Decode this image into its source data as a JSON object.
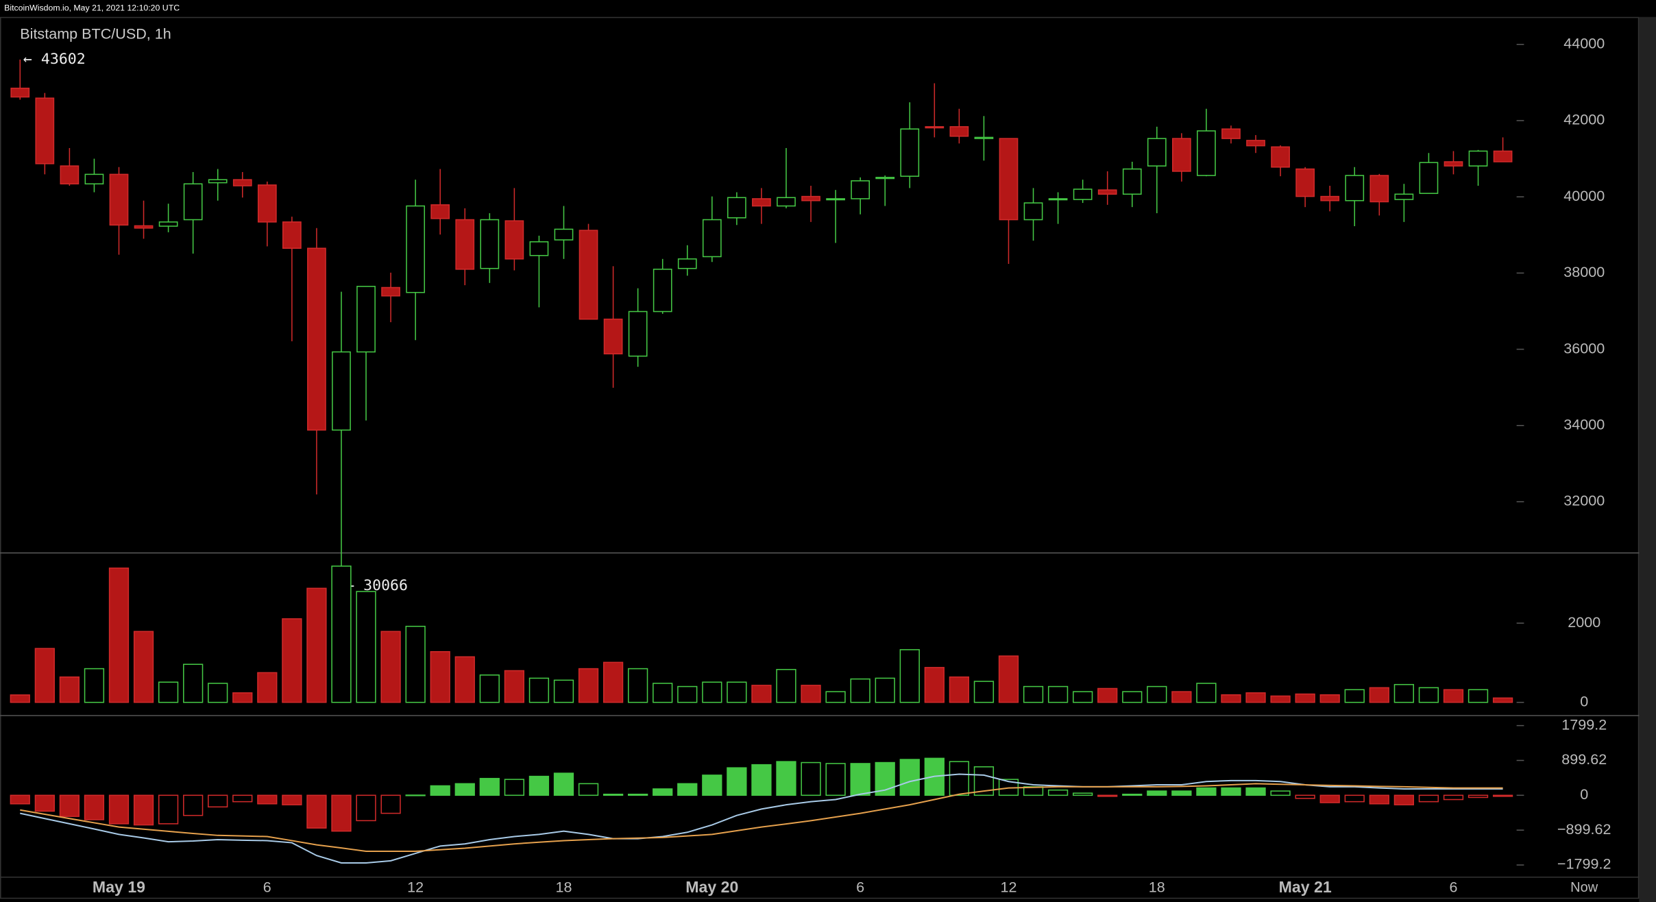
{
  "header": {
    "title": "BitcoinWisdom.io, May 21, 2021 12:10:20 UTC"
  },
  "chart_data": [
    {
      "type": "candlestick",
      "title": "Bitstamp BTC/USD, 1h",
      "annotations": [
        "← 43602",
        "← 30066"
      ],
      "categories": [
        null,
        null,
        null,
        null,
        "May 19",
        null,
        null,
        null,
        null,
        null,
        "6",
        null,
        null,
        null,
        null,
        null,
        "12",
        null,
        null,
        null,
        null,
        null,
        "18",
        null,
        null,
        null,
        null,
        null,
        "May 20",
        null,
        null,
        null,
        null,
        null,
        "6",
        null,
        null,
        null,
        null,
        null,
        "12",
        null,
        null,
        null,
        null,
        null,
        "18",
        null,
        null,
        null,
        null,
        null,
        "May 21",
        null,
        null,
        null,
        null,
        null,
        "6",
        null,
        null
      ],
      "now_label": "Now",
      "open": [
        42850,
        42590,
        40810,
        40340,
        40590,
        39240,
        39230,
        39400,
        40370,
        40450,
        40310,
        39340,
        38650,
        33880,
        35930,
        37620,
        37490,
        39790,
        39400,
        38120,
        39370,
        38460,
        38870,
        39120,
        36790,
        35820,
        36990,
        38120,
        38430,
        39450,
        39950,
        39760,
        40010,
        39930,
        39950,
        40480,
        40540,
        41840,
        41840,
        41530,
        41530,
        39400,
        39930,
        39930,
        40180,
        40070,
        40810,
        41530,
        40560,
        41780,
        41480,
        41310,
        40730,
        40010,
        39900,
        40560,
        39930,
        40090,
        40920,
        40810,
        41200
      ],
      "high": [
        43602,
        42725,
        41280,
        41000,
        40780,
        39900,
        39820,
        40650,
        40730,
        40650,
        40400,
        39480,
        39180,
        37510,
        37650,
        38010,
        40450,
        40730,
        39700,
        39570,
        40230,
        38980,
        39760,
        39290,
        38180,
        37600,
        38370,
        38730,
        40010,
        40120,
        40230,
        41280,
        40290,
        40180,
        40510,
        40560,
        42480,
        42980,
        42310,
        42120,
        41530,
        40230,
        40120,
        40450,
        40670,
        40920,
        41840,
        41670,
        42310,
        41870,
        41620,
        41350,
        40780,
        40290,
        40780,
        40600,
        40340,
        41150,
        41200,
        41230,
        41560
      ],
      "low": [
        42550,
        40590,
        40290,
        40120,
        38480,
        38900,
        39070,
        38510,
        39900,
        39980,
        38700,
        36210,
        32190,
        30066,
        34130,
        36710,
        36240,
        39010,
        37680,
        37740,
        38070,
        37100,
        38370,
        36790,
        34990,
        35540,
        36930,
        37930,
        38290,
        39260,
        39290,
        39700,
        39340,
        38790,
        39540,
        39760,
        40230,
        41560,
        41400,
        40950,
        38240,
        38850,
        39290,
        39840,
        39790,
        39730,
        39570,
        40400,
        40540,
        41400,
        41150,
        40540,
        39730,
        39620,
        39230,
        39510,
        39340,
        40090,
        40590,
        40290,
        40920
      ],
      "close": [
        42620,
        40870,
        40340,
        40590,
        39260,
        39180,
        39340,
        40340,
        40450,
        40290,
        39340,
        38650,
        33880,
        35930,
        37650,
        37400,
        39760,
        39430,
        38100,
        39400,
        38370,
        38820,
        39150,
        36790,
        35880,
        36990,
        38100,
        38370,
        39400,
        39980,
        39760,
        39980,
        39900,
        39950,
        40420,
        40510,
        41780,
        41810,
        41590,
        41560,
        39400,
        39840,
        39950,
        40200,
        40070,
        40730,
        41530,
        40670,
        41730,
        41530,
        41340,
        40780,
        40010,
        39900,
        40560,
        39870,
        40070,
        40900,
        40810,
        41200,
        40920
      ],
      "up_color": "#45c845",
      "down_color": "#b51717",
      "ylim": [
        30670,
        44720
      ],
      "yticks": [
        32000,
        34000,
        36000,
        38000,
        40000,
        42000,
        44000
      ]
    },
    {
      "type": "bar",
      "values": [
        187,
        1360,
        640,
        850,
        3390,
        1790,
        510,
        960,
        480,
        240,
        750,
        2110,
        2880,
        3440,
        2800,
        1790,
        1920,
        1280,
        1150,
        690,
        800,
        610,
        560,
        850,
        1010,
        850,
        480,
        400,
        510,
        510,
        430,
        830,
        430,
        270,
        590,
        610,
        1330,
        880,
        640,
        530,
        1170,
        400,
        400,
        270,
        350,
        270,
        400,
        270,
        480,
        190,
        240,
        160,
        210,
        190,
        320,
        370,
        450,
        370,
        320,
        320,
        110
      ],
      "ylim": [
        -320,
        3787
      ],
      "yticks": [
        0,
        2000
      ]
    },
    {
      "type": "macd",
      "histogram": [
        -220,
        -410,
        -545,
        -630,
        -735,
        -765,
        -735,
        -520,
        -300,
        -165,
        -220,
        -245,
        -845,
        -925,
        -655,
        -465,
        5,
        245,
        300,
        435,
        410,
        490,
        570,
        300,
        27,
        27,
        165,
        300,
        520,
        710,
        790,
        870,
        845,
        820,
        820,
        845,
        925,
        955,
        870,
        735,
        410,
        220,
        135,
        55,
        -27,
        27,
        110,
        110,
        190,
        190,
        190,
        110,
        -80,
        -190,
        -165,
        -220,
        -245,
        -165,
        -110,
        -55,
        -27
      ],
      "series": [
        {
          "color": "#a9cbe8",
          "values": [
            -465,
            -600,
            -735,
            -870,
            -1010,
            -1100,
            -1200,
            -1180,
            -1145,
            -1160,
            -1170,
            -1225,
            -1555,
            -1745,
            -1745,
            -1690,
            -1500,
            -1310,
            -1255,
            -1145,
            -1065,
            -1010,
            -925,
            -1010,
            -1120,
            -1120,
            -1065,
            -955,
            -765,
            -520,
            -355,
            -245,
            -165,
            -110,
            27,
            135,
            355,
            490,
            545,
            520,
            355,
            270,
            245,
            220,
            220,
            245,
            270,
            270,
            355,
            380,
            380,
            355,
            270,
            220,
            220,
            190,
            165,
            165,
            165,
            165,
            165
          ]
        },
        {
          "color": "#e6a14d",
          "values": [
            -380,
            -490,
            -600,
            -710,
            -820,
            -875,
            -930,
            -985,
            -1035,
            -1050,
            -1065,
            -1170,
            -1280,
            -1360,
            -1445,
            -1445,
            -1445,
            -1405,
            -1365,
            -1310,
            -1255,
            -1210,
            -1170,
            -1145,
            -1120,
            -1105,
            -1090,
            -1050,
            -1010,
            -915,
            -820,
            -740,
            -655,
            -560,
            -465,
            -355,
            -245,
            -110,
            27,
            110,
            190,
            205,
            220,
            220,
            220,
            220,
            220,
            230,
            245,
            270,
            300,
            285,
            270,
            255,
            245,
            230,
            220,
            205,
            190,
            190,
            190
          ]
        }
      ],
      "up_color": "#45c845",
      "down_color": "#b51717",
      "ylim": [
        -2099,
        2072
      ],
      "yticks": [
        {
          "value": -1799.2,
          "label": "−1799.2"
        },
        {
          "value": -899.62,
          "label": "−899.62"
        },
        0,
        899.62,
        1799.2
      ]
    }
  ]
}
